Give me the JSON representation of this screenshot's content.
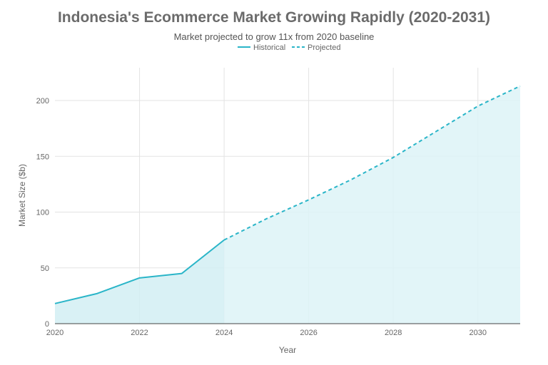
{
  "chart_data": {
    "type": "area",
    "title": "Indonesia's Ecommerce Market Growing Rapidly (2020-2031)",
    "subtitle": "Market projected to grow 11x from 2020 baseline",
    "xlabel": "Year",
    "ylabel": "Market Size ($b)",
    "xlim": [
      2020,
      2031
    ],
    "ylim": [
      0,
      230
    ],
    "x_ticks": [
      2020,
      2022,
      2024,
      2026,
      2028,
      2030
    ],
    "y_ticks": [
      0,
      50,
      100,
      150,
      200
    ],
    "grid": true,
    "legend_position": "top-center",
    "series": [
      {
        "name": "Historical",
        "style": "solid",
        "color": "#2ab5c8",
        "x": [
          2020,
          2021,
          2022,
          2023,
          2024
        ],
        "values": [
          18,
          27,
          41,
          45,
          75
        ]
      },
      {
        "name": "Projected",
        "style": "dashed",
        "color": "#2ab5c8",
        "x": [
          2024,
          2025,
          2026,
          2027,
          2028,
          2029,
          2030,
          2031
        ],
        "values": [
          75,
          94,
          111,
          129,
          149,
          172,
          195,
          213
        ]
      }
    ],
    "fill_colors": {
      "historical": "#d2eff3",
      "projected": "#ddf3f7"
    }
  }
}
